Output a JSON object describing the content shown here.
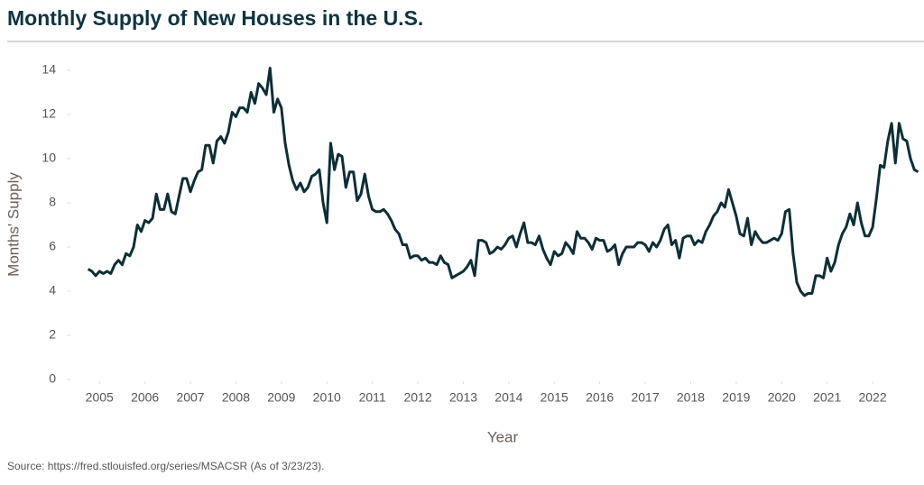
{
  "chart_data": {
    "type": "line",
    "title": "Monthly Supply of New Houses in the U.S.",
    "x_label": "Year",
    "y_label": "Months' Supply",
    "source": "Source: https://fred.stlouisfed.org/series/MSACSR (As of 3/23/23).",
    "xlim": [
      2004.4,
      2023.05
    ],
    "ylim": [
      0,
      14
    ],
    "xticks": [
      2005,
      2006,
      2007,
      2008,
      2009,
      2010,
      2011,
      2012,
      2013,
      2014,
      2015,
      2016,
      2017,
      2018,
      2019,
      2020,
      2021,
      2022
    ],
    "yticks": [
      0,
      2,
      4,
      6,
      8,
      10,
      12,
      14
    ],
    "grid": false,
    "x": [
      2004.75,
      2004.833,
      2004.917,
      2005,
      2005.083,
      2005.167,
      2005.25,
      2005.333,
      2005.417,
      2005.5,
      2005.583,
      2005.667,
      2005.75,
      2005.833,
      2005.917,
      2006,
      2006.083,
      2006.167,
      2006.25,
      2006.333,
      2006.417,
      2006.5,
      2006.583,
      2006.667,
      2006.75,
      2006.833,
      2006.917,
      2007,
      2007.083,
      2007.167,
      2007.25,
      2007.333,
      2007.417,
      2007.5,
      2007.583,
      2007.667,
      2007.75,
      2007.833,
      2007.917,
      2008,
      2008.083,
      2008.167,
      2008.25,
      2008.333,
      2008.417,
      2008.5,
      2008.583,
      2008.667,
      2008.75,
      2008.833,
      2008.917,
      2009,
      2009.083,
      2009.167,
      2009.25,
      2009.333,
      2009.417,
      2009.5,
      2009.583,
      2009.667,
      2009.75,
      2009.833,
      2009.917,
      2010,
      2010.083,
      2010.167,
      2010.25,
      2010.333,
      2010.417,
      2010.5,
      2010.583,
      2010.667,
      2010.75,
      2010.833,
      2010.917,
      2011,
      2011.083,
      2011.167,
      2011.25,
      2011.333,
      2011.417,
      2011.5,
      2011.583,
      2011.667,
      2011.75,
      2011.833,
      2011.917,
      2012,
      2012.083,
      2012.167,
      2012.25,
      2012.333,
      2012.417,
      2012.5,
      2012.583,
      2012.667,
      2012.75,
      2012.833,
      2012.917,
      2013,
      2013.083,
      2013.167,
      2013.25,
      2013.333,
      2013.417,
      2013.5,
      2013.583,
      2013.667,
      2013.75,
      2013.833,
      2013.917,
      2014,
      2014.083,
      2014.167,
      2014.25,
      2014.333,
      2014.417,
      2014.5,
      2014.583,
      2014.667,
      2014.75,
      2014.833,
      2014.917,
      2015,
      2015.083,
      2015.167,
      2015.25,
      2015.333,
      2015.417,
      2015.5,
      2015.583,
      2015.667,
      2015.75,
      2015.833,
      2015.917,
      2016,
      2016.083,
      2016.167,
      2016.25,
      2016.333,
      2016.417,
      2016.5,
      2016.583,
      2016.667,
      2016.75,
      2016.833,
      2016.917,
      2017,
      2017.083,
      2017.167,
      2017.25,
      2017.333,
      2017.417,
      2017.5,
      2017.583,
      2017.667,
      2017.75,
      2017.833,
      2017.917,
      2018,
      2018.083,
      2018.167,
      2018.25,
      2018.333,
      2018.417,
      2018.5,
      2018.583,
      2018.667,
      2018.75,
      2018.833,
      2018.917,
      2019,
      2019.083,
      2019.167,
      2019.25,
      2019.333,
      2019.417,
      2019.5,
      2019.583,
      2019.667,
      2019.75,
      2019.833,
      2019.917,
      2020,
      2020.083,
      2020.167,
      2020.25,
      2020.333,
      2020.417,
      2020.5,
      2020.583,
      2020.667,
      2020.75,
      2020.833,
      2020.917,
      2021,
      2021.083,
      2021.167,
      2021.25,
      2021.333,
      2021.417,
      2021.5,
      2021.583,
      2021.667,
      2021.75,
      2021.833,
      2021.917,
      2022,
      2022.083,
      2022.167,
      2022.25,
      2022.333,
      2022.417,
      2022.5,
      2022.583,
      2022.667,
      2022.75,
      2022.833,
      2022.917,
      2023
    ],
    "series": [
      {
        "name": "Months' Supply",
        "color": "#0c2f36",
        "values": [
          5.0,
          4.9,
          4.7,
          4.9,
          4.8,
          4.9,
          4.8,
          5.2,
          5.4,
          5.2,
          5.7,
          5.6,
          6.0,
          7.0,
          6.7,
          7.2,
          7.1,
          7.3,
          8.4,
          7.7,
          7.7,
          8.4,
          7.6,
          7.5,
          8.3,
          9.1,
          9.1,
          8.5,
          9.0,
          9.4,
          9.5,
          10.6,
          10.6,
          9.8,
          10.8,
          11.0,
          10.7,
          11.2,
          12.1,
          11.9,
          12.3,
          12.3,
          12.1,
          13.0,
          12.5,
          13.4,
          13.2,
          12.9,
          14.1,
          12.1,
          12.7,
          12.3,
          10.7,
          9.7,
          9.0,
          8.6,
          8.9,
          8.5,
          8.7,
          9.2,
          9.3,
          9.5,
          8.0,
          7.1,
          10.7,
          9.5,
          10.2,
          10.1,
          8.7,
          9.4,
          9.4,
          8.1,
          8.4,
          9.3,
          8.3,
          7.7,
          7.6,
          7.6,
          7.7,
          7.5,
          7.2,
          6.8,
          6.6,
          6.1,
          6.1,
          5.5,
          5.6,
          5.6,
          5.4,
          5.5,
          5.3,
          5.3,
          5.2,
          5.6,
          5.3,
          5.2,
          4.6,
          4.7,
          4.8,
          4.9,
          5.1,
          5.4,
          4.7,
          6.3,
          6.3,
          6.2,
          5.7,
          5.8,
          6.0,
          5.9,
          6.1,
          6.4,
          6.5,
          6.0,
          6.6,
          7.1,
          6.2,
          6.2,
          6.1,
          6.5,
          5.9,
          5.5,
          5.2,
          5.8,
          5.6,
          5.7,
          6.2,
          6.0,
          5.7,
          6.7,
          6.4,
          6.4,
          6.2,
          5.9,
          6.4,
          6.3,
          6.3,
          5.8,
          5.9,
          6.1,
          5.2,
          5.7,
          6.0,
          6.0,
          6.0,
          6.2,
          6.2,
          6.1,
          5.8,
          6.2,
          6.0,
          6.3,
          6.8,
          7.0,
          6.1,
          6.3,
          5.5,
          6.4,
          6.5,
          6.5,
          6.1,
          6.3,
          6.2,
          6.7,
          7.0,
          7.4,
          7.6,
          8.0,
          7.8,
          8.6,
          8.0,
          7.4,
          6.6,
          6.5,
          7.3,
          6.1,
          6.7,
          6.4,
          6.2,
          6.2,
          6.3,
          6.4,
          6.3,
          6.6,
          7.6,
          7.7,
          5.7,
          4.4,
          4.0,
          3.8,
          3.9,
          3.9,
          4.7,
          4.7,
          4.6,
          5.5,
          4.9,
          5.3,
          6.1,
          6.6,
          6.9,
          7.5,
          7.0,
          8.0,
          7.1,
          6.5,
          6.5,
          6.9,
          8.2,
          9.7,
          9.6,
          10.8,
          11.6,
          9.8,
          11.6,
          10.9,
          10.8,
          10.0,
          9.5,
          9.4
        ]
      }
    ]
  }
}
